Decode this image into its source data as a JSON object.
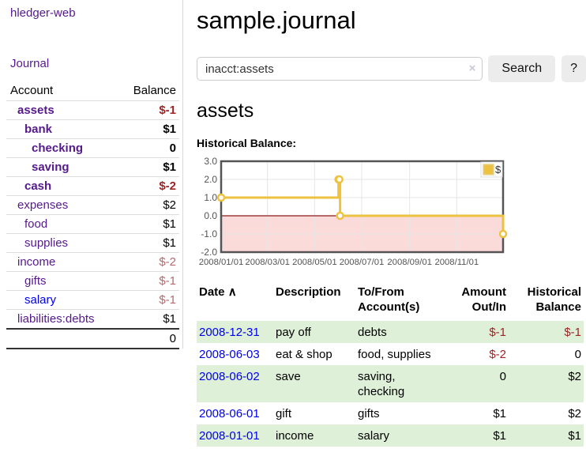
{
  "colors": {
    "link_purple": "#551a8b",
    "link_blue": "#0000ee",
    "negative_red": "#9d2424",
    "negative_light_red": "#b36a6e",
    "row_stripe_green": "#dff0d8",
    "chart_line_gold": "#edc240",
    "chart_negative_region_pink": "#fbdada",
    "chart_zero_line_red": "#8b1a1a",
    "chart_border_gray": "#545454",
    "button_gray": "#ececec"
  },
  "sidebar": {
    "brand": "hledger-web",
    "journal_link": "Journal",
    "accounts": {
      "headers": [
        "Account",
        "Balance"
      ],
      "rows": [
        {
          "account": "assets",
          "balance": "$-1",
          "indent": 1,
          "bold": true,
          "balance_tone": "red",
          "link_tone": "purple"
        },
        {
          "account": "bank",
          "balance": "$1",
          "indent": 2,
          "bold": true,
          "balance_tone": "black",
          "link_tone": "purple"
        },
        {
          "account": "checking",
          "balance": "0",
          "indent": 3,
          "bold": true,
          "balance_tone": "black",
          "link_tone": "purple"
        },
        {
          "account": "saving",
          "balance": "$1",
          "indent": 3,
          "bold": true,
          "balance_tone": "black",
          "link_tone": "purple"
        },
        {
          "account": "cash",
          "balance": "$-2",
          "indent": 2,
          "bold": true,
          "balance_tone": "red",
          "link_tone": "purple"
        },
        {
          "account": "expenses",
          "balance": "$2",
          "indent": 1,
          "bold": false,
          "balance_tone": "black",
          "link_tone": "purple"
        },
        {
          "account": "food",
          "balance": "$1",
          "indent": 2,
          "bold": false,
          "balance_tone": "black",
          "link_tone": "purple"
        },
        {
          "account": "supplies",
          "balance": "$1",
          "indent": 2,
          "bold": false,
          "balance_tone": "black",
          "link_tone": "purple"
        },
        {
          "account": "income",
          "balance": "$-2",
          "indent": 1,
          "bold": false,
          "balance_tone": "red-light",
          "link_tone": "purple"
        },
        {
          "account": "gifts",
          "balance": "$-1",
          "indent": 2,
          "bold": false,
          "balance_tone": "red-light",
          "link_tone": "purple"
        },
        {
          "account": "salary",
          "balance": "$-1",
          "indent": 2,
          "bold": false,
          "balance_tone": "red-light",
          "link_tone": "blue"
        },
        {
          "account": "liabilities:debts",
          "balance": "$1",
          "indent": 1,
          "bold": false,
          "balance_tone": "black",
          "link_tone": "purple"
        }
      ],
      "total": "0"
    }
  },
  "main": {
    "title": "sample.journal",
    "search": {
      "value": "inacct:assets",
      "clear_icon": "×",
      "button_label": "Search",
      "help_button_label": "?"
    },
    "account_heading": "assets"
  },
  "chart_data": {
    "type": "line",
    "style": "steps",
    "title": "Historical Balance:",
    "legend": [
      {
        "label": "$",
        "color": "#edc240"
      }
    ],
    "legend_position": "top-right",
    "xlim_days": [
      0,
      365
    ],
    "ylim": [
      -2,
      3
    ],
    "y_ticks": [
      3.0,
      2.0,
      1.0,
      0.0,
      -1.0,
      -2.0
    ],
    "x_ticks": [
      {
        "day": 0,
        "label": "2008/01/01"
      },
      {
        "day": 60,
        "label": "2008/03/01"
      },
      {
        "day": 121,
        "label": "2008/05/01"
      },
      {
        "day": 182,
        "label": "2008/07/01"
      },
      {
        "day": 244,
        "label": "2008/09/01"
      },
      {
        "day": 305,
        "label": "2008/11/01"
      }
    ],
    "series": [
      {
        "name": "$",
        "color": "#edc240",
        "points": [
          {
            "date": "2008-01-01",
            "day": 0,
            "value": 1
          },
          {
            "date": "2008-06-01",
            "day": 152,
            "value": 2
          },
          {
            "date": "2008-06-02",
            "day": 153,
            "value": 2
          },
          {
            "date": "2008-06-03",
            "day": 154,
            "value": 0
          },
          {
            "date": "2008-12-31",
            "day": 365,
            "value": -1
          }
        ]
      }
    ],
    "grid": true,
    "negative_region_color": "#fbdada",
    "zero_line_color": "#8b1a1a",
    "plot_border_color": "#545454",
    "tick_label_color": "#545454"
  },
  "register": {
    "headers": {
      "date": "Date",
      "sort_icon": "∧",
      "description": "Description",
      "accounts": "To/From Account(s)",
      "amount": "Amount Out/In",
      "balance": "Historical Balance"
    },
    "rows": [
      {
        "date": "2008-12-31",
        "description": "pay off",
        "accounts": "debts",
        "amount": "$-1",
        "amount_tone": "red",
        "balance": "$-1",
        "balance_tone": "red"
      },
      {
        "date": "2008-06-03",
        "description": "eat & shop",
        "accounts": "food, supplies",
        "amount": "$-2",
        "amount_tone": "red",
        "balance": "0",
        "balance_tone": "black"
      },
      {
        "date": "2008-06-02",
        "description": "save",
        "accounts": "saving, checking",
        "amount": "0",
        "amount_tone": "black",
        "balance": "$2",
        "balance_tone": "black"
      },
      {
        "date": "2008-06-01",
        "description": "gift",
        "accounts": "gifts",
        "amount": "$1",
        "amount_tone": "black",
        "balance": "$2",
        "balance_tone": "black"
      },
      {
        "date": "2008-01-01",
        "description": "income",
        "accounts": "salary",
        "amount": "$1",
        "amount_tone": "black",
        "balance": "$1",
        "balance_tone": "black"
      }
    ]
  }
}
